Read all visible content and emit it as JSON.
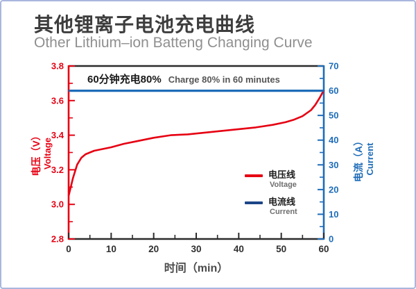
{
  "header": {
    "title_cn": "其他锂离子电池充电曲线",
    "subtitle_en": "Other Lithium–ion Batteng Changing Curve"
  },
  "chart_data": {
    "type": "line",
    "title": "其他锂离子电池充电曲线",
    "subtitle": "Other Lithium–ion Batteng Changing Curve",
    "annotation": {
      "text_cn": "60分钟充电80%",
      "text_en": "Charge 80% in 60 minutes"
    },
    "x_axis": {
      "label": "时间（min）",
      "range": [
        0,
        60
      ],
      "major_ticks": [
        "0",
        "10",
        "20",
        "30",
        "40",
        "50",
        "60"
      ],
      "minor_step": 5,
      "color": "#2b2b2b",
      "tick_label_color": "#2f2f2f"
    },
    "y_axis_left": {
      "label_cn": "电压（V）",
      "label_en": "Voltage",
      "range": [
        2.8,
        3.8
      ],
      "major_ticks": [
        "3.8",
        "3.6",
        "3.4",
        "3.2",
        "3.0",
        "2.8"
      ],
      "minor_step": 0.1,
      "color": "#e60012"
    },
    "y_axis_right": {
      "label_cn": "电流（A）",
      "label_en": "Current",
      "range": [
        0,
        70
      ],
      "major_ticks": [
        "70",
        "60",
        "50",
        "40",
        "30",
        "20",
        "10",
        "0"
      ],
      "minor_step": 5,
      "color": "#1e6cb8"
    },
    "grid": false,
    "legend": {
      "position": "inside-right",
      "items": [
        {
          "label_cn": "电压线",
          "label_en": "Voltage",
          "color": "#e60012"
        },
        {
          "label_cn": "电流线",
          "label_en": "Current",
          "color": "#1c4587"
        }
      ]
    },
    "series": [
      {
        "name": "voltage",
        "axis": "left",
        "unit": "V",
        "color": "#e60012",
        "points": [
          [
            0,
            3.05
          ],
          [
            0.5,
            3.1
          ],
          [
            1,
            3.15
          ],
          [
            2,
            3.23
          ],
          [
            3,
            3.27
          ],
          [
            4,
            3.29
          ],
          [
            6,
            3.31
          ],
          [
            8,
            3.32
          ],
          [
            10,
            3.33
          ],
          [
            13,
            3.35
          ],
          [
            16,
            3.365
          ],
          [
            20,
            3.385
          ],
          [
            24,
            3.4
          ],
          [
            28,
            3.405
          ],
          [
            32,
            3.415
          ],
          [
            36,
            3.425
          ],
          [
            40,
            3.435
          ],
          [
            44,
            3.445
          ],
          [
            48,
            3.46
          ],
          [
            51,
            3.475
          ],
          [
            53,
            3.49
          ],
          [
            55,
            3.51
          ],
          [
            57,
            3.545
          ],
          [
            58,
            3.575
          ],
          [
            59,
            3.615
          ],
          [
            60,
            3.66
          ]
        ]
      },
      {
        "name": "current",
        "axis": "right",
        "unit": "A",
        "color": "#1e6cb8",
        "points": [
          [
            0,
            60
          ],
          [
            60,
            60
          ]
        ]
      }
    ]
  }
}
